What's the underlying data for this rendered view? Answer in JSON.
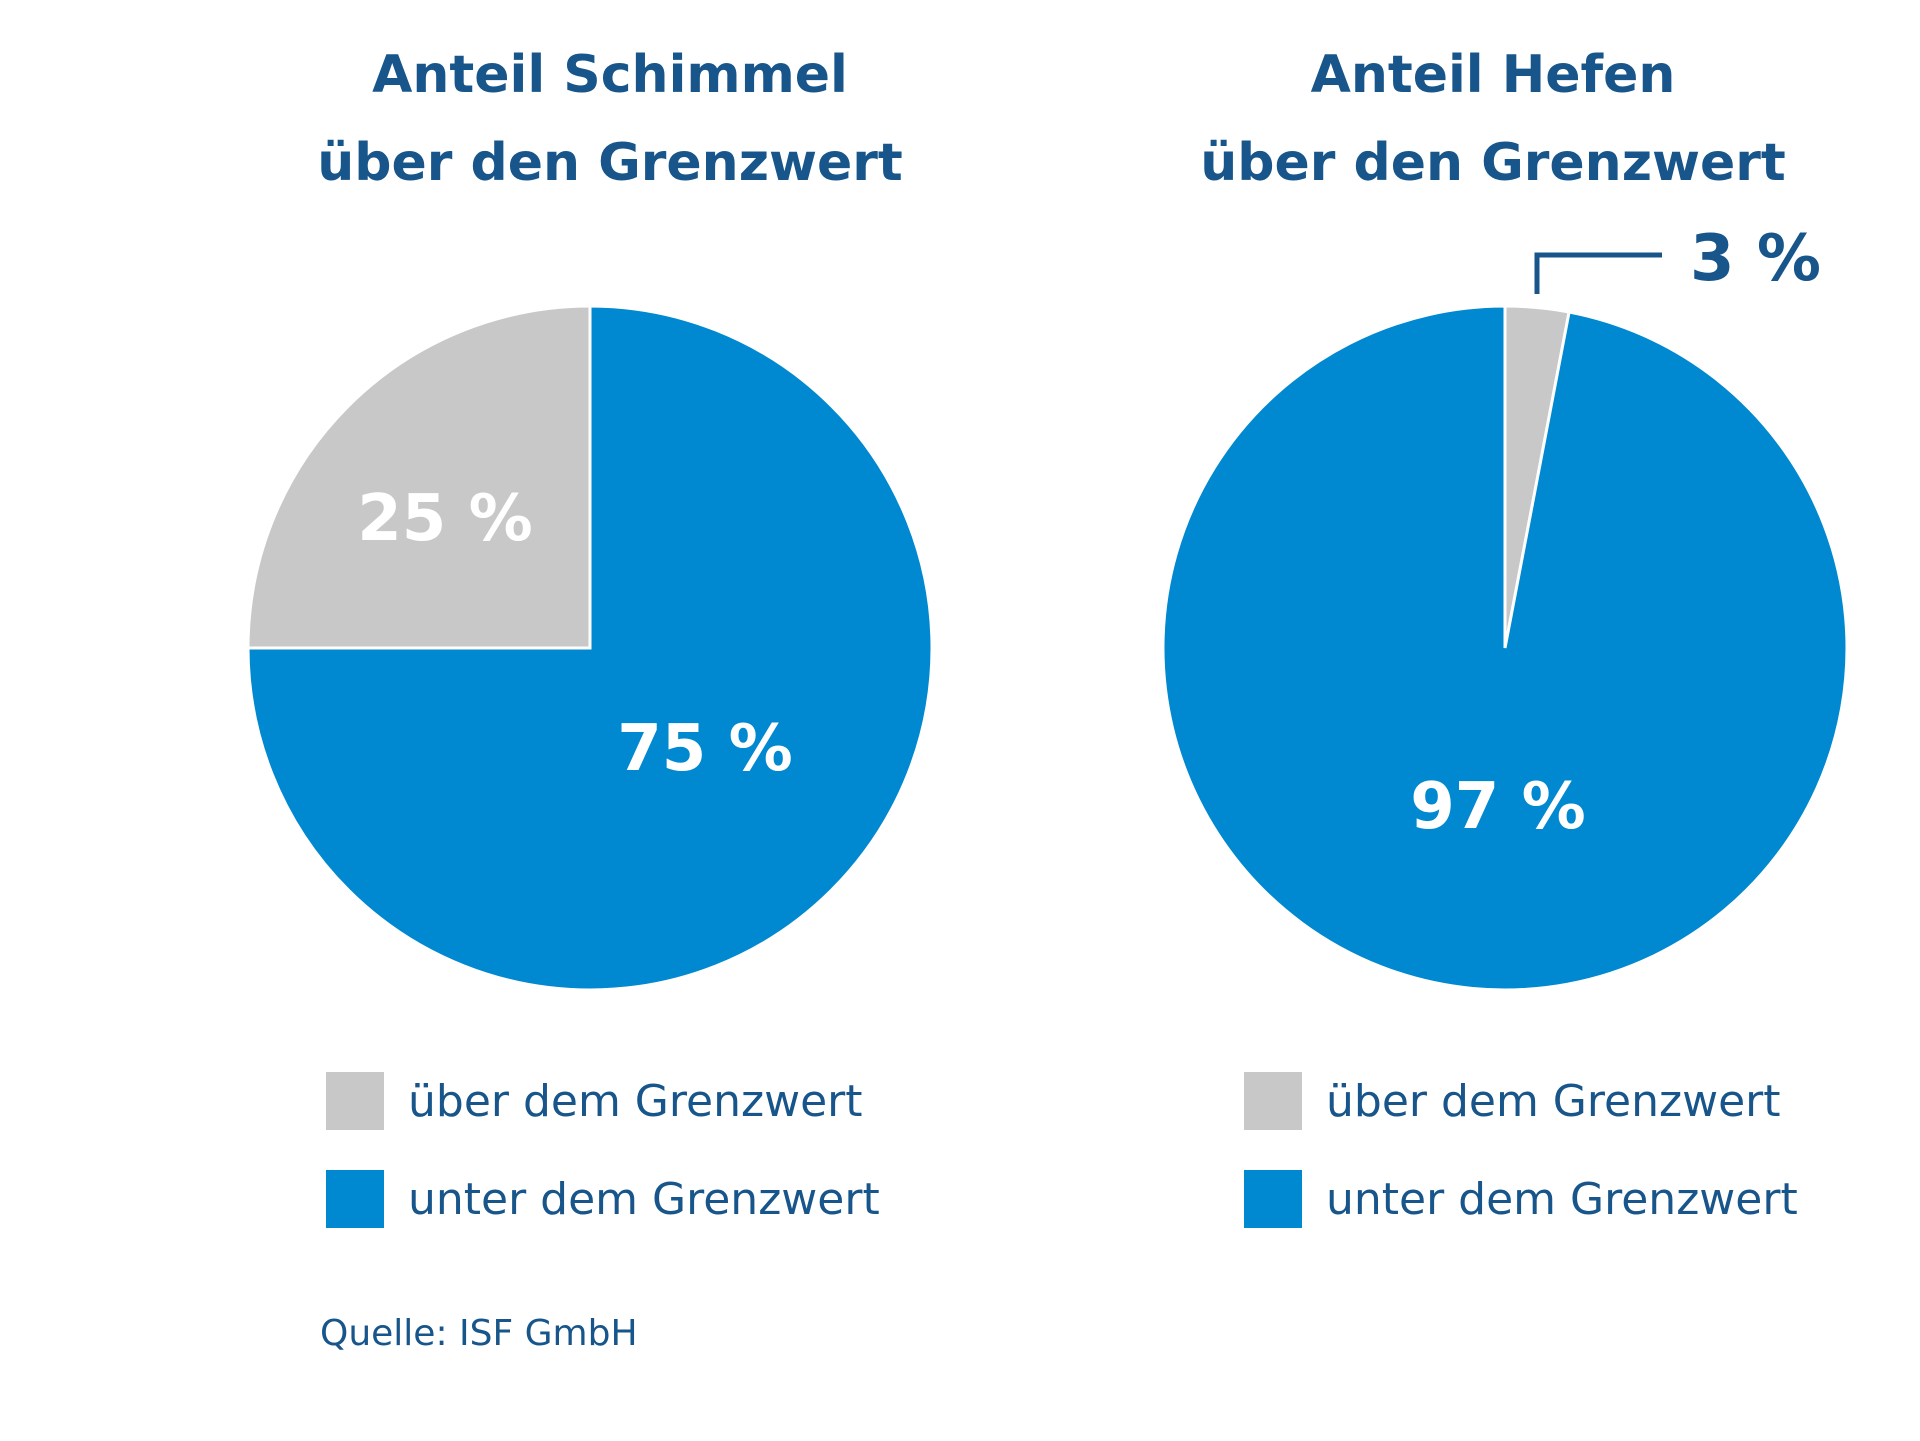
{
  "chart_data": [
    {
      "type": "pie",
      "title_lines": [
        "Anteil Schimmel",
        "über den Grenzwert"
      ],
      "slices": [
        {
          "label": "über dem Grenzwert",
          "value": 25,
          "display": "25 %",
          "color": "#c8c8c8"
        },
        {
          "label": "unter dem Grenzwert",
          "value": 75,
          "display": "75 %",
          "color": "#0088d1"
        }
      ],
      "legend": [
        {
          "label": "über dem Grenzwert",
          "color": "#c8c8c8"
        },
        {
          "label": "unter dem Grenzwert",
          "color": "#0088d1"
        }
      ]
    },
    {
      "type": "pie",
      "title_lines": [
        "Anteil Hefen",
        "über den Grenzwert"
      ],
      "slices": [
        {
          "label": "über dem Grenzwert",
          "value": 3,
          "display": "3 %",
          "color": "#c8c8c8"
        },
        {
          "label": "unter dem Grenzwert",
          "value": 97,
          "display": "97 %",
          "color": "#0088d1"
        }
      ],
      "legend": [
        {
          "label": "über dem Grenzwert",
          "color": "#c8c8c8"
        },
        {
          "label": "unter dem Grenzwert",
          "color": "#0088d1"
        }
      ]
    }
  ],
  "source": "Quelle: ISF GmbH",
  "colors": {
    "title": "#17558a",
    "above": "#c8c8c8",
    "below": "#0088d1",
    "label_inside": "#ffffff"
  }
}
